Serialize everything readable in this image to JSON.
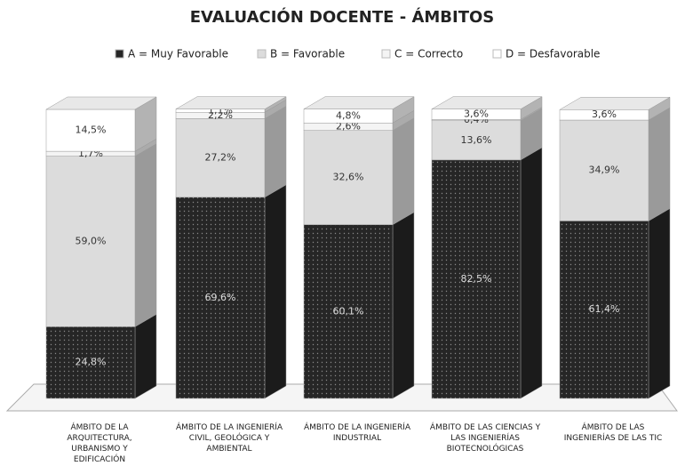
{
  "chart_data": {
    "type": "bar3d_stacked",
    "title": "EVALUACIÓN DOCENTE - ÁMBITOS",
    "categories": [
      "ÁMBITO DE LA\nARQUITECTURA,\nURBANISMO Y\nEDIFICACIÓN",
      "ÁMBITO DE LA INGENIERÍA\nCIVIL, GEOLÓGICA Y\nAMBIENTAL",
      "ÁMBITO DE LA INGENIERÍA\nINDUSTRIAL",
      "ÁMBITO DE LAS CIENCIAS Y\nLAS INGENIERÍAS\nBIOTECNOLÓGICAS",
      "ÁMBITO DE LAS\nINGENIERÍAS DE LAS TIC"
    ],
    "legend": "top",
    "series": [
      {
        "name": "A = Muy Favorable",
        "color": "#262626",
        "values": [
          24.8,
          69.6,
          60.1,
          82.5,
          61.4
        ],
        "value_labels": [
          "24,8%",
          "69,6%",
          "60,1%",
          "82,5%",
          "61,4%"
        ]
      },
      {
        "name": "B = Favorable",
        "color": "#dcdcdc",
        "values": [
          59.0,
          27.2,
          32.6,
          13.6,
          34.9
        ],
        "value_labels": [
          "59,0%",
          "27,2%",
          "32,6%",
          "13,6%",
          "34,9%"
        ]
      },
      {
        "name": "C = Correcto",
        "color": "#f4f4f4",
        "values": [
          1.7,
          2.2,
          2.6,
          0.4,
          null
        ],
        "value_labels": [
          "1,7%",
          "2,2%",
          "2,6%",
          "0,4%",
          null
        ]
      },
      {
        "name": "D = Desfavorable",
        "color": "#ffffff",
        "values": [
          14.5,
          1.1,
          4.8,
          3.6,
          3.6
        ],
        "value_labels": [
          "14,5%",
          "1,1%",
          "4,8%",
          "3,6%",
          "3,6%"
        ]
      }
    ]
  }
}
